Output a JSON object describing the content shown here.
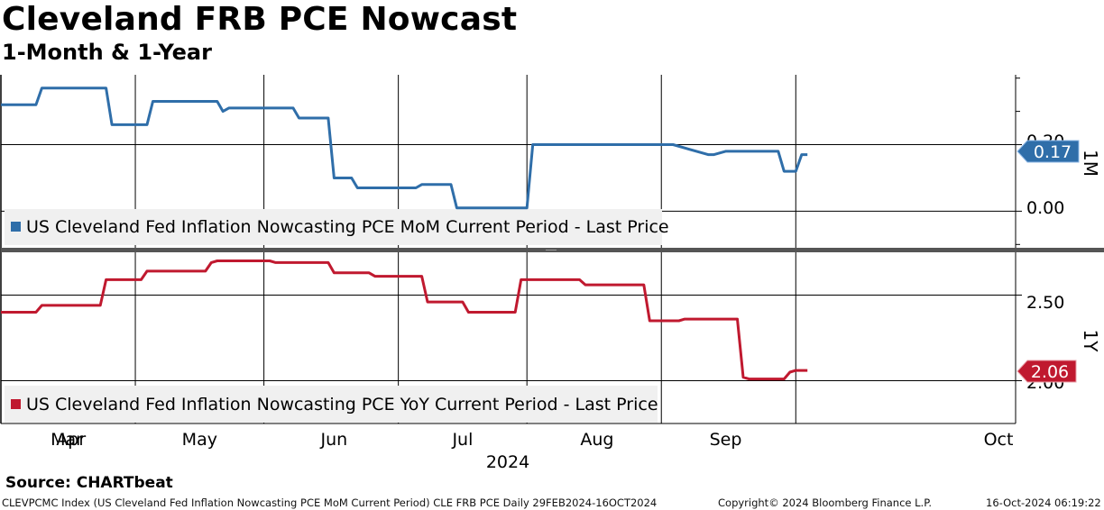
{
  "title": "Cleveland FRB PCE Nowcast",
  "subtitle": "1-Month & 1-Year",
  "source": "Source: CHARTbeat",
  "footer": {
    "index_info": "CLEVPCMC Index (US Cleveland Fed Inflation Nowcasting PCE MoM Current Period) CLE FRB PCE  Daily 29FEB2024-16OCT2024",
    "copyright": "Copyright© 2024 Bloomberg Finance L.P.",
    "timestamp": "16-Oct-2024 06:19:22"
  },
  "colors": {
    "mom": "#2f6ea9",
    "yoy": "#c0192f",
    "grid": "#000000",
    "legend_bg": "#f0f0f0"
  },
  "chart_data": [
    {
      "type": "line",
      "panel": "top",
      "panel_label": "1M",
      "legend": "US Cleveland Fed Inflation Nowcasting PCE MoM Current Period - Last Price",
      "last_value_label": "0.17",
      "yticks": [
        "0.20",
        "0.00"
      ],
      "ylim": [
        -0.11,
        0.41
      ],
      "series": {
        "name": "US Cleveland Fed Inflation Nowcasting PCE MoM Current Period",
        "x": [
          0,
          6,
          7,
          18,
          19,
          25,
          26,
          37,
          38,
          39,
          50,
          51,
          56,
          57,
          58,
          59,
          60,
          61,
          63,
          66,
          67,
          71,
          72,
          75,
          76,
          77,
          78,
          80,
          81,
          90,
          91,
          93,
          94,
          97,
          98,
          107,
          108,
          109,
          110,
          112,
          113,
          115,
          121,
          122,
          124,
          125,
          126,
          127,
          128,
          130,
          131,
          132,
          133,
          134,
          136,
          137,
          138
        ],
        "y": [
          0.32,
          0.32,
          0.37,
          0.37,
          0.26,
          0.26,
          0.33,
          0.33,
          0.3,
          0.31,
          0.31,
          0.28,
          0.28,
          0.1,
          0.1,
          0.1,
          0.1,
          0.07,
          0.07,
          0.07,
          0.07,
          0.07,
          0.08,
          0.08,
          0.08,
          0.08,
          0.01,
          0.01,
          0.01,
          0.01,
          0.2,
          0.2,
          0.2,
          0.2,
          0.2,
          0.2,
          0.2,
          0.2,
          0.2,
          0.2,
          0.2,
          0.2,
          0.17,
          0.17,
          0.18,
          0.18,
          0.18,
          0.18,
          0.18,
          0.18,
          0.18,
          0.18,
          0.18,
          0.12,
          0.12,
          0.17,
          0.17
        ]
      }
    },
    {
      "type": "line",
      "panel": "bottom",
      "panel_label": "1Y",
      "legend": "US Cleveland Fed Inflation Nowcasting PCE YoY Current Period - Last Price",
      "last_value_label": "2.06",
      "yticks": [
        "2.50",
        "2.00"
      ],
      "ylim": [
        1.75,
        2.75
      ],
      "series": {
        "name": "US Cleveland Fed Inflation Nowcasting PCE YoY Current Period",
        "x": [
          0,
          6,
          7,
          17,
          18,
          24,
          25,
          35,
          36,
          37,
          46,
          47,
          56,
          57,
          63,
          64,
          72,
          73,
          79,
          80,
          88,
          89,
          99,
          100,
          110,
          111,
          116,
          117,
          126,
          127,
          128,
          134,
          135,
          136,
          137,
          138
        ],
        "y": [
          2.4,
          2.4,
          2.44,
          2.44,
          2.59,
          2.59,
          2.64,
          2.64,
          2.69,
          2.7,
          2.7,
          2.69,
          2.69,
          2.63,
          2.63,
          2.61,
          2.61,
          2.46,
          2.46,
          2.4,
          2.4,
          2.59,
          2.59,
          2.56,
          2.56,
          2.35,
          2.35,
          2.36,
          2.36,
          2.02,
          2.01,
          2.01,
          2.05,
          2.06,
          2.06,
          2.06
        ]
      }
    }
  ],
  "x_axis": {
    "months": [
      "Mar",
      "Apr",
      "May",
      "Jun",
      "Jul",
      "Aug",
      "Sep",
      "Oct"
    ],
    "year_label": "2024",
    "gridlines": [
      0,
      23,
      45,
      68,
      90,
      113,
      136
    ],
    "month_label_positions": [
      -3,
      12,
      34,
      57,
      79,
      102,
      124,
      145
    ]
  }
}
